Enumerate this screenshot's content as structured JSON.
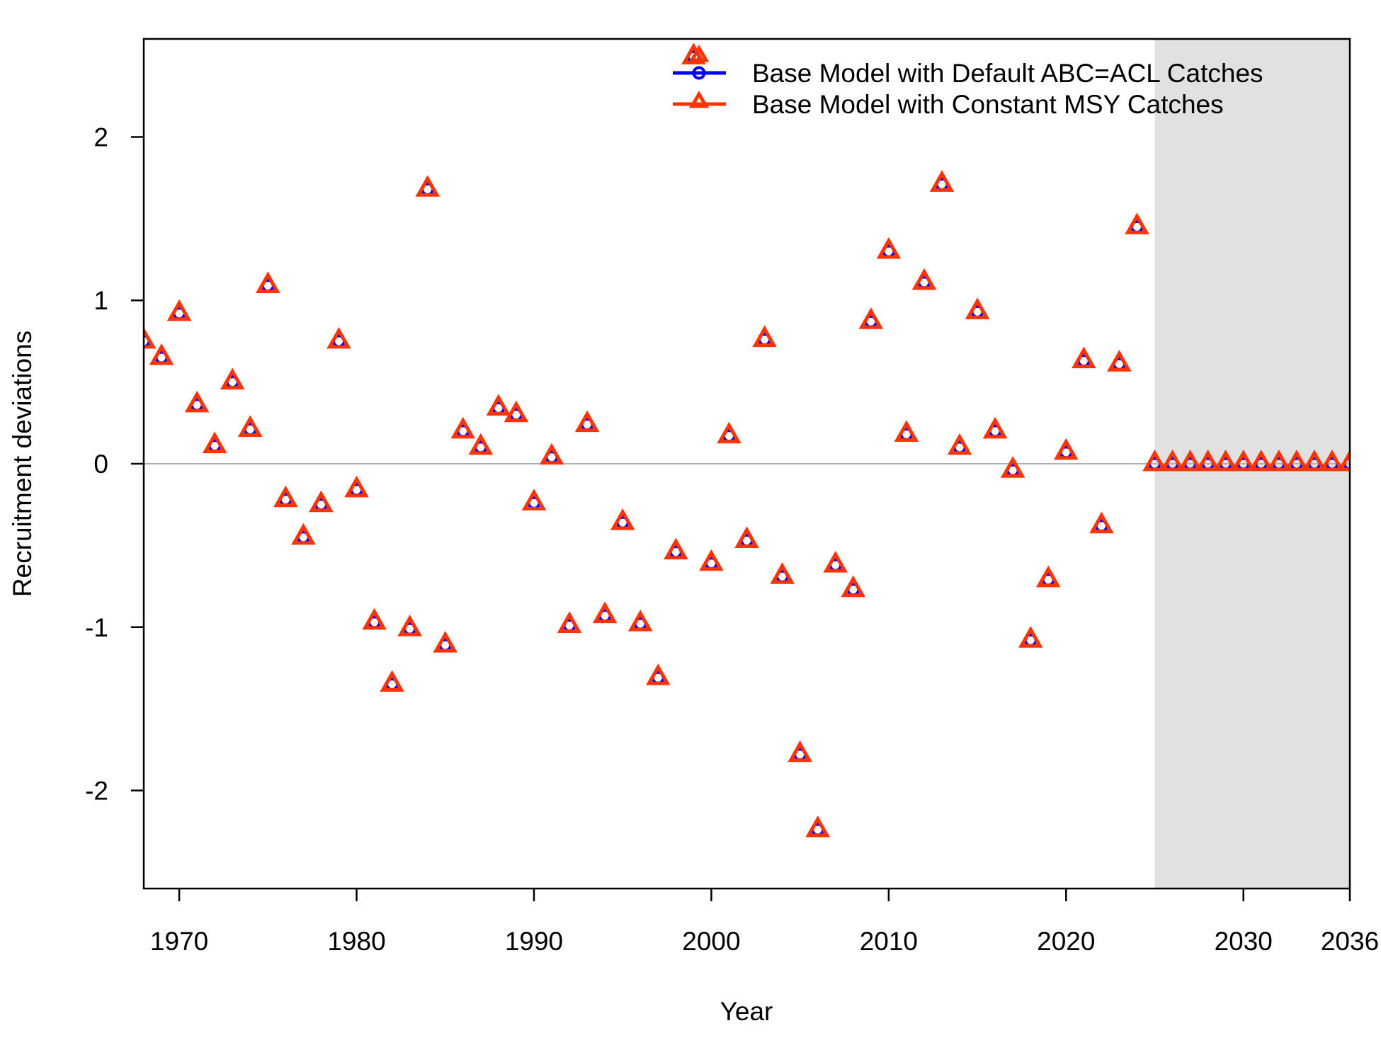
{
  "chart_data": {
    "type": "scatter",
    "title": "",
    "xlabel": "Year",
    "ylabel": "Recruitment deviations",
    "xlim": [
      1968,
      2036
    ],
    "ylim": [
      -2.6,
      2.6
    ],
    "x_ticks": [
      1970,
      1980,
      1990,
      2000,
      2010,
      2020,
      2030,
      2036
    ],
    "x_tick_labels": [
      "1970",
      "1980",
      "1990",
      "2000",
      "2010",
      "2020",
      "2030",
      "2036"
    ],
    "y_ticks": [
      -2,
      -1,
      0,
      1,
      2
    ],
    "y_tick_labels": [
      "-2",
      "-1",
      "0",
      "1",
      "2"
    ],
    "reference_line_y": 0,
    "forecast_region": {
      "from": 2025,
      "to": 2036,
      "color": "#e1e1e1"
    },
    "grid": false,
    "legend_position": "top-right",
    "x": [
      1968,
      1969,
      1970,
      1971,
      1972,
      1973,
      1974,
      1975,
      1976,
      1977,
      1978,
      1979,
      1980,
      1981,
      1982,
      1983,
      1984,
      1985,
      1986,
      1987,
      1988,
      1989,
      1990,
      1991,
      1992,
      1993,
      1994,
      1995,
      1996,
      1997,
      1998,
      1999,
      2000,
      2001,
      2002,
      2003,
      2004,
      2005,
      2006,
      2007,
      2008,
      2009,
      2010,
      2011,
      2012,
      2013,
      2014,
      2015,
      2016,
      2017,
      2018,
      2019,
      2020,
      2021,
      2022,
      2023,
      2024,
      2025,
      2026,
      2027,
      2028,
      2029,
      2030,
      2031,
      2032,
      2033,
      2034,
      2035,
      2036
    ],
    "series": [
      {
        "name": "Base Model with Default ABC=ACL Catches",
        "color": "#0000ff",
        "marker": "circle",
        "values": [
          0.75,
          0.65,
          0.92,
          0.36,
          0.11,
          0.5,
          0.21,
          1.09,
          -0.22,
          -0.45,
          -0.25,
          0.75,
          -0.16,
          -0.97,
          -1.35,
          -1.01,
          1.68,
          -1.11,
          0.2,
          0.1,
          0.34,
          0.3,
          -0.24,
          0.04,
          -0.99,
          0.24,
          -0.93,
          -0.36,
          -0.98,
          -1.31,
          -0.54,
          2.49,
          -0.61,
          0.17,
          -0.47,
          0.76,
          -0.69,
          -1.78,
          -2.24,
          -0.62,
          -0.77,
          0.87,
          1.3,
          0.18,
          1.11,
          1.71,
          0.1,
          0.93,
          0.2,
          -0.04,
          -1.08,
          -0.71,
          0.07,
          0.63,
          -0.38,
          0.61,
          1.45,
          0,
          0,
          0,
          0,
          0,
          0,
          0,
          0,
          0,
          0,
          0,
          0
        ]
      },
      {
        "name": "Base Model with Constant MSY Catches",
        "color": "#ff3300",
        "marker": "triangle",
        "values": [
          0.75,
          0.65,
          0.92,
          0.36,
          0.11,
          0.5,
          0.21,
          1.09,
          -0.22,
          -0.45,
          -0.25,
          0.75,
          -0.16,
          -0.97,
          -1.35,
          -1.01,
          1.68,
          -1.11,
          0.2,
          0.1,
          0.34,
          0.3,
          -0.24,
          0.04,
          -0.99,
          0.24,
          -0.93,
          -0.36,
          -0.98,
          -1.31,
          -0.54,
          2.49,
          -0.61,
          0.17,
          -0.47,
          0.76,
          -0.69,
          -1.78,
          -2.24,
          -0.62,
          -0.77,
          0.87,
          1.3,
          0.18,
          1.11,
          1.71,
          0.1,
          0.93,
          0.2,
          -0.04,
          -1.08,
          -0.71,
          0.07,
          0.63,
          -0.38,
          0.61,
          1.45,
          0,
          0,
          0,
          0,
          0,
          0,
          0,
          0,
          0,
          0,
          0,
          0
        ]
      }
    ]
  }
}
